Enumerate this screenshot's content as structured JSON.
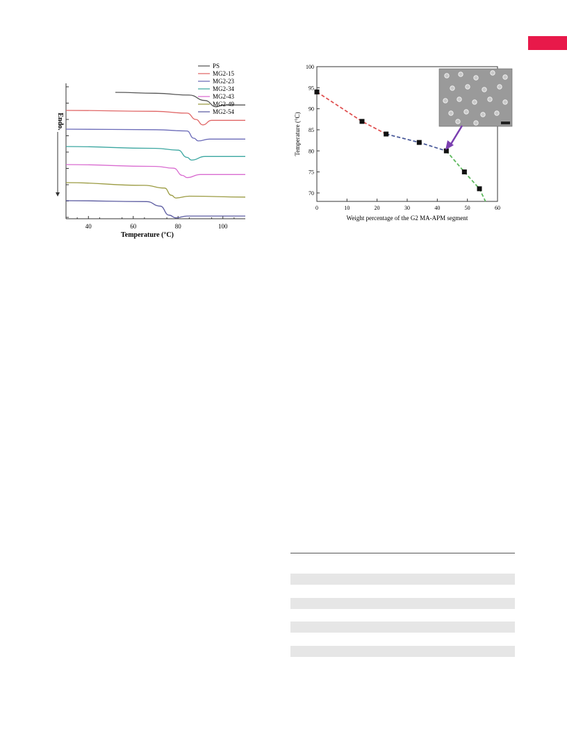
{
  "page": {
    "accent_color": "#e8194a"
  },
  "figures": {
    "dsc": {
      "ylabel": "Endo.",
      "xlabel": "Temperature (°C)",
      "legend": [
        "PS",
        "MG2-15",
        "MG2-23",
        "MG2-34",
        "MG2-43",
        "MG2-49",
        "MG2-54"
      ]
    },
    "tg": {
      "xlabel": "Weight percentage of the G2 MA-APM segment",
      "ylabel": "Temperature (°C)",
      "inset": "micrograph inset (white circular domains on grey background) with arrow pointing to the 43 wt% point"
    }
  },
  "chart_data": [
    {
      "type": "line",
      "xlabel": "Temperature (°C)",
      "ylabel": "Endo.",
      "xlim": [
        30,
        110
      ],
      "xticks": [
        40,
        60,
        80,
        100
      ],
      "y_ticks_labeled": false,
      "legend_position": "top-right",
      "series": [
        {
          "name": "PS",
          "color": "#555555",
          "x": [
            52,
            70,
            85,
            92,
            97,
            100,
            110
          ],
          "y": [
            0.0,
            -0.05,
            -0.15,
            -0.45,
            -0.8,
            -0.7,
            -0.7
          ]
        },
        {
          "name": "MG2-15",
          "color": "#e06666",
          "x": [
            30,
            70,
            84,
            88,
            91,
            95,
            110
          ],
          "y": [
            0.0,
            -0.05,
            -0.15,
            -0.5,
            -0.8,
            -0.55,
            -0.55
          ]
        },
        {
          "name": "MG2-23",
          "color": "#6a6ab8",
          "x": [
            30,
            70,
            84,
            87,
            89,
            94,
            110
          ],
          "y": [
            0.0,
            -0.03,
            -0.1,
            -0.5,
            -0.65,
            -0.55,
            -0.55
          ]
        },
        {
          "name": "MG2-34",
          "color": "#3aa6a0",
          "x": [
            30,
            70,
            80,
            84,
            86,
            92,
            110
          ],
          "y": [
            0.0,
            -0.1,
            -0.2,
            -0.6,
            -0.75,
            -0.55,
            -0.55
          ]
        },
        {
          "name": "MG2-43",
          "color": "#d96bd0",
          "x": [
            30,
            70,
            78,
            82,
            84,
            90,
            110
          ],
          "y": [
            0.0,
            -0.1,
            -0.2,
            -0.6,
            -0.72,
            -0.55,
            -0.55
          ]
        },
        {
          "name": "MG2-49",
          "color": "#9a9a40",
          "x": [
            30,
            65,
            74,
            77,
            79,
            85,
            110
          ],
          "y": [
            0.0,
            -0.15,
            -0.3,
            -0.7,
            -0.85,
            -0.75,
            -0.8
          ]
        },
        {
          "name": "MG2-54",
          "color": "#5a5aa0",
          "x": [
            30,
            66,
            72,
            76,
            79,
            84,
            110
          ],
          "y": [
            0.0,
            -0.05,
            -0.3,
            -0.8,
            -0.95,
            -0.85,
            -0.85
          ]
        }
      ]
    },
    {
      "type": "scatter",
      "xlabel": "Weight percentage of the G2 MA-APM segment",
      "ylabel": "Temperature (°C)",
      "xlim": [
        0,
        60
      ],
      "ylim": [
        68,
        100
      ],
      "xticks": [
        0,
        10,
        20,
        30,
        40,
        50,
        60
      ],
      "yticks": [
        70,
        75,
        80,
        85,
        90,
        95,
        100
      ],
      "points": {
        "x": [
          0,
          15,
          23,
          34,
          43,
          49,
          54
        ],
        "y": [
          94,
          87,
          84,
          82,
          80,
          75,
          71
        ]
      },
      "fit_segments": [
        {
          "color": "#e05050",
          "x": [
            0,
            15,
            23
          ],
          "y": [
            94,
            87,
            84
          ]
        },
        {
          "color": "#4a5a9a",
          "x": [
            23,
            34,
            43
          ],
          "y": [
            84,
            82,
            80
          ]
        },
        {
          "color": "#5cb85c",
          "x": [
            43,
            49,
            54,
            56
          ],
          "y": [
            80,
            75,
            71,
            68
          ]
        }
      ],
      "grid": false
    }
  ],
  "table": {
    "rows_visible": 4
  }
}
